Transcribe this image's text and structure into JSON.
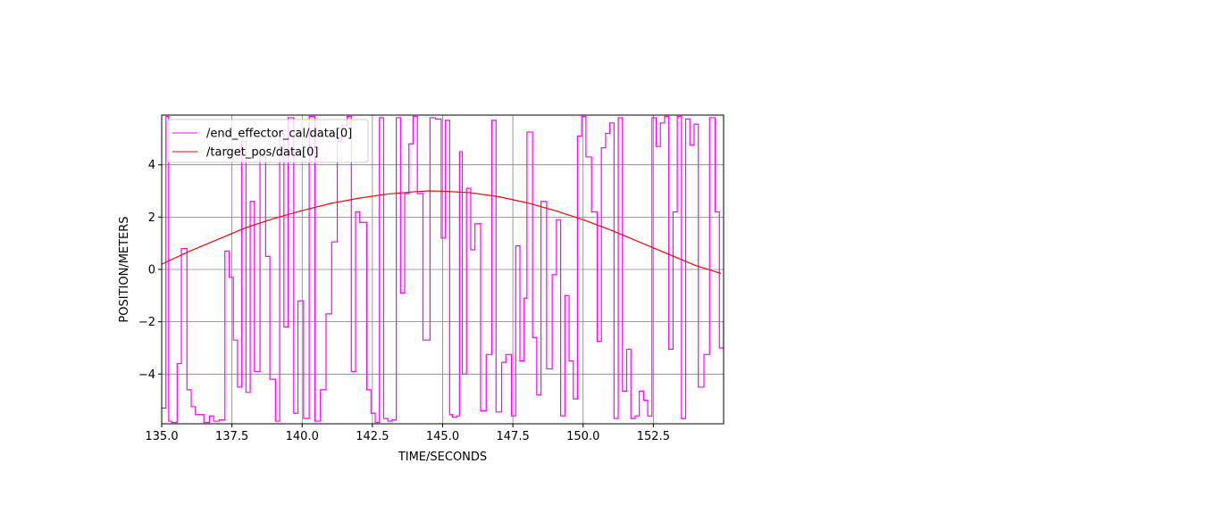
{
  "chart_data": {
    "type": "line",
    "title": "",
    "xlabel": "TIME/SECONDS",
    "ylabel": "POSITION/METERS",
    "xlim": [
      135.0,
      155.0
    ],
    "ylim": [
      -5.9,
      5.9
    ],
    "xticks": [
      135.0,
      137.5,
      140.0,
      142.5,
      145.0,
      147.5,
      150.0,
      152.5
    ],
    "xtick_labels": [
      "135.0",
      "137.5",
      "140.0",
      "142.5",
      "145.0",
      "147.5",
      "150.0",
      "152.5"
    ],
    "yticks": [
      -4,
      -2,
      0,
      2,
      4
    ],
    "ytick_labels": [
      "−4",
      "−2",
      "0",
      "2",
      "4"
    ],
    "grid": true,
    "legend_position": "top-left",
    "series": [
      {
        "name": "/end_effector_cal/data[0]",
        "color": "#ff00ff",
        "style": "step",
        "x": [
          135.0,
          135.15,
          135.25,
          135.35,
          135.55,
          135.7,
          135.9,
          136.05,
          136.2,
          136.5,
          136.7,
          136.85,
          137.05,
          137.25,
          137.4,
          137.55,
          137.7,
          137.85,
          138.0,
          138.15,
          138.3,
          138.5,
          138.7,
          138.85,
          139.05,
          139.2,
          139.35,
          139.5,
          139.7,
          139.85,
          140.05,
          140.25,
          140.45,
          140.65,
          140.85,
          141.05,
          141.25,
          141.4,
          141.6,
          141.75,
          141.9,
          142.05,
          142.3,
          142.45,
          142.6,
          142.75,
          142.9,
          143.05,
          143.2,
          143.35,
          143.5,
          143.65,
          143.8,
          143.95,
          144.1,
          144.3,
          144.55,
          144.75,
          144.95,
          145.1,
          145.25,
          145.35,
          145.5,
          145.6,
          145.7,
          145.85,
          146.0,
          146.15,
          146.35,
          146.55,
          146.75,
          146.9,
          147.1,
          147.25,
          147.45,
          147.6,
          147.75,
          147.9,
          148.0,
          148.2,
          148.35,
          148.5,
          148.7,
          148.9,
          149.05,
          149.2,
          149.35,
          149.5,
          149.65,
          149.8,
          149.95,
          150.1,
          150.3,
          150.5,
          150.65,
          150.8,
          150.95,
          151.1,
          151.25,
          151.4,
          151.55,
          151.7,
          151.85,
          152.0,
          152.15,
          152.3,
          152.45,
          152.6,
          152.75,
          152.9,
          153.05,
          153.2,
          153.35,
          153.5,
          153.65,
          153.8,
          153.95,
          154.1,
          154.3,
          154.5,
          154.7,
          154.85,
          155.0
        ],
        "y": [
          -5.3,
          5.85,
          -5.8,
          -5.85,
          -3.6,
          0.8,
          -4.6,
          -5.25,
          -5.55,
          -5.85,
          -5.6,
          -5.8,
          -5.75,
          0.7,
          -0.3,
          -2.7,
          -4.5,
          4.9,
          -4.7,
          2.6,
          -3.9,
          4.3,
          0.5,
          -4.2,
          -5.8,
          5.2,
          -2.2,
          5.8,
          -5.5,
          -1.2,
          -5.7,
          5.85,
          -5.8,
          -4.6,
          -1.7,
          1.05,
          4.9,
          5.5,
          5.85,
          -3.9,
          2.2,
          1.8,
          -4.6,
          -5.5,
          -5.85,
          5.8,
          -5.7,
          -5.8,
          -5.75,
          5.8,
          -0.9,
          2.9,
          4.8,
          5.85,
          2.9,
          -2.7,
          5.8,
          5.75,
          1.2,
          5.7,
          -5.55,
          -5.65,
          -5.6,
          4.5,
          -4.0,
          3.1,
          0.75,
          1.75,
          -5.4,
          -3.25,
          5.7,
          -5.45,
          -3.55,
          -3.25,
          -5.6,
          0.9,
          -3.5,
          -1.1,
          5.25,
          -2.6,
          -4.8,
          2.6,
          -3.8,
          -0.2,
          1.9,
          -5.6,
          -1.0,
          -3.5,
          -4.95,
          5.1,
          5.85,
          4.3,
          2.2,
          -2.75,
          4.65,
          5.2,
          5.6,
          -5.7,
          5.8,
          -4.65,
          -3.05,
          -5.7,
          -5.6,
          -4.65,
          -5.0,
          -5.6,
          5.8,
          4.7,
          5.6,
          5.85,
          -3.05,
          2.2,
          5.85,
          -5.7,
          5.75,
          4.75,
          5.55,
          -4.5,
          -3.25,
          5.8,
          2.2,
          -3.0,
          -2.0
        ],
        "name_visible": true
      },
      {
        "name": "/target_pos/data[0]",
        "color": "#ff0000",
        "style": "line",
        "x": [
          135.0,
          136.0,
          137.0,
          138.0,
          139.0,
          140.0,
          141.0,
          142.0,
          143.0,
          144.0,
          144.5,
          145.0,
          146.0,
          147.0,
          148.0,
          149.0,
          150.0,
          151.0,
          152.0,
          153.0,
          154.0,
          154.9
        ],
        "y": [
          0.2,
          0.7,
          1.15,
          1.6,
          1.95,
          2.25,
          2.52,
          2.72,
          2.88,
          2.97,
          3.0,
          2.99,
          2.93,
          2.78,
          2.55,
          2.25,
          1.9,
          1.5,
          1.05,
          0.6,
          0.15,
          -0.15
        ]
      }
    ]
  }
}
